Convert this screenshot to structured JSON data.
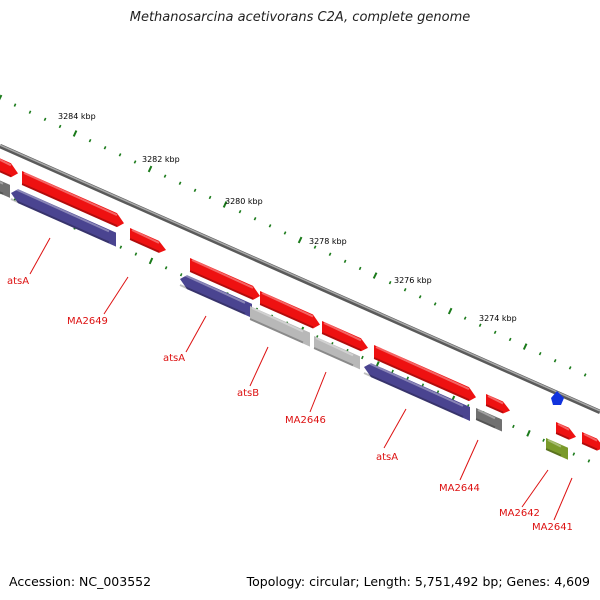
{
  "title": "Methanosarcina acetivorans C2A, complete genome",
  "footer": {
    "accession": "Accession: NC_003552",
    "summary": "Topology: circular; Length: 5,751,492 bp; Genes: 4,609"
  },
  "ruler_labels": [
    "3284 kbp",
    "3282 kbp",
    "3280 kbp",
    "3278 kbp",
    "3276 kbp",
    "3274 kbp"
  ],
  "gene_labels": [
    "atsA",
    "MA2649",
    "atsA",
    "atsB",
    "MA2646",
    "atsA",
    "MA2644",
    "MA2642",
    "MA2641"
  ],
  "colors": {
    "forward_feature": "#ee1111",
    "reverse_feature": "#4a4490",
    "gray_feature": "#b8b8b8",
    "dark_gray_feature": "#707070",
    "olive_feature": "#7a9a2a",
    "blue_feature": "#1133dd",
    "label": "#dd1111",
    "ruler_ticks": "#1a7a1a",
    "backbone": "#808080"
  }
}
